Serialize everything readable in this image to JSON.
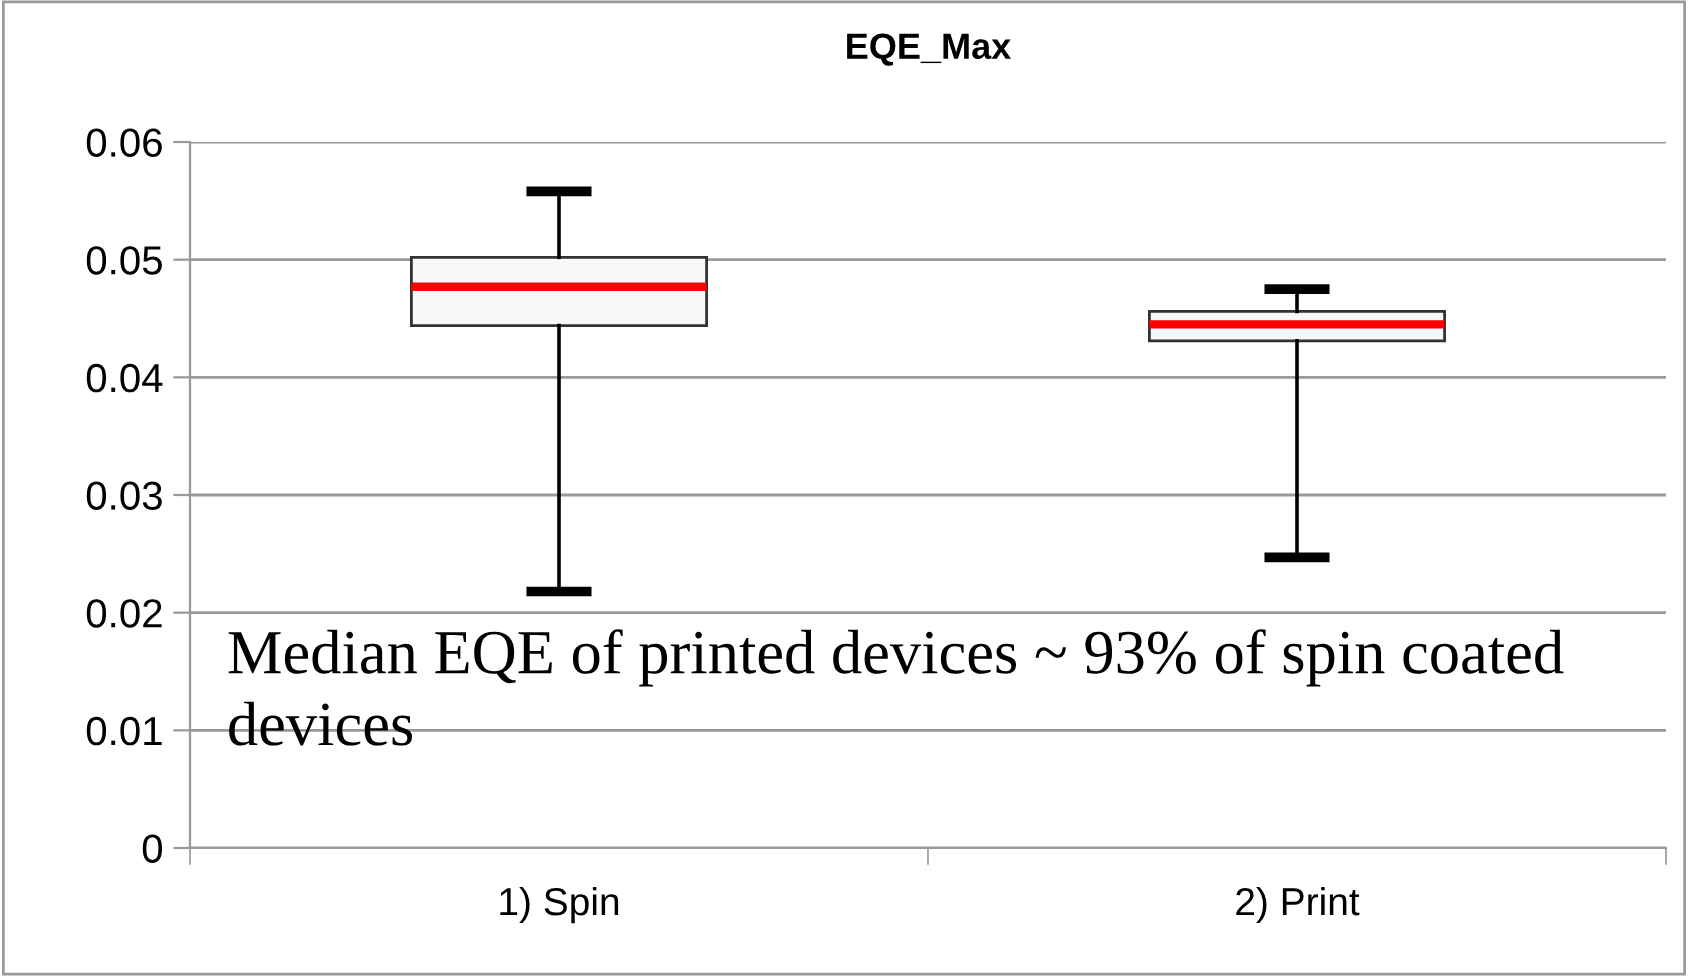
{
  "chart_data": {
    "type": "box",
    "title": "EQE_Max",
    "categories": [
      "1) Spin",
      "2) Print"
    ],
    "boxes": [
      {
        "low": 0.0218,
        "q1": 0.0444,
        "median": 0.0477,
        "q3": 0.0502,
        "high": 0.0558
      },
      {
        "low": 0.0247,
        "q1": 0.0431,
        "median": 0.0445,
        "q3": 0.0456,
        "high": 0.0475
      }
    ],
    "ylim": [
      0,
      0.06
    ],
    "yticks": [
      0,
      0.01,
      0.02,
      0.03,
      0.04,
      0.05,
      0.06
    ],
    "grid": "y",
    "annotations": [
      "Median EQE of printed devices ~ 93% of spin coated devices"
    ]
  }
}
